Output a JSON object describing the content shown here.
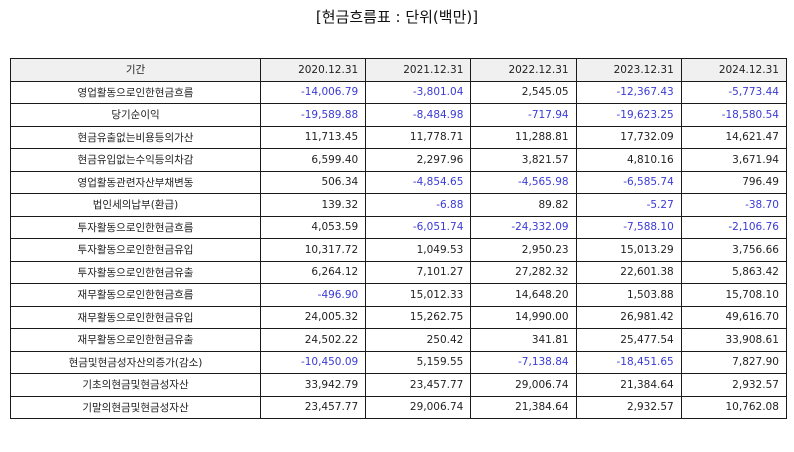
{
  "title": "[현금흐름표 : 단위(백만)]",
  "colors": {
    "negative": "#3a3ad6",
    "header_bg": "#f0f0f0",
    "border": "#1a1a1a"
  },
  "table": {
    "header": [
      "기간",
      "2020.12.31",
      "2021.12.31",
      "2022.12.31",
      "2023.12.31",
      "2024.12.31"
    ],
    "rows": [
      {
        "label": "영업활동으로인한현금흐름",
        "values": [
          "-14,006.79",
          "-3,801.04",
          "2,545.05",
          "-12,367.43",
          "-5,773.44"
        ]
      },
      {
        "label": "당기순이익",
        "values": [
          "-19,589.88",
          "-8,484.98",
          "-717.94",
          "-19,623.25",
          "-18,580.54"
        ]
      },
      {
        "label": "현금유출없는비용등의가산",
        "values": [
          "11,713.45",
          "11,778.71",
          "11,288.81",
          "17,732.09",
          "14,621.47"
        ]
      },
      {
        "label": "현금유입없는수익등의차감",
        "values": [
          "6,599.40",
          "2,297.96",
          "3,821.57",
          "4,810.16",
          "3,671.94"
        ]
      },
      {
        "label": "영업활동관련자산부채변동",
        "values": [
          "506.34",
          "-4,854.65",
          "-4,565.98",
          "-6,585.74",
          "796.49"
        ]
      },
      {
        "label": "법인세의납부(환급)",
        "values": [
          "139.32",
          "-6.88",
          "89.82",
          "-5.27",
          "-38.70"
        ]
      },
      {
        "label": "투자활동으로인한현금흐름",
        "values": [
          "4,053.59",
          "-6,051.74",
          "-24,332.09",
          "-7,588.10",
          "-2,106.76"
        ]
      },
      {
        "label": "투자활동으로인한현금유입",
        "values": [
          "10,317.72",
          "1,049.53",
          "2,950.23",
          "15,013.29",
          "3,756.66"
        ]
      },
      {
        "label": "투자활동으로인한현금유출",
        "values": [
          "6,264.12",
          "7,101.27",
          "27,282.32",
          "22,601.38",
          "5,863.42"
        ]
      },
      {
        "label": "재무활동으로인한현금흐름",
        "values": [
          "-496.90",
          "15,012.33",
          "14,648.20",
          "1,503.88",
          "15,708.10"
        ]
      },
      {
        "label": "재무활동으로인한현금유입",
        "values": [
          "24,005.32",
          "15,262.75",
          "14,990.00",
          "26,981.42",
          "49,616.70"
        ]
      },
      {
        "label": "재무활동으로인한현금유출",
        "values": [
          "24,502.22",
          "250.42",
          "341.81",
          "25,477.54",
          "33,908.61"
        ]
      },
      {
        "label": "현금및현금성자산의증가(감소)",
        "values": [
          "-10,450.09",
          "5,159.55",
          "-7,138.84",
          "-18,451.65",
          "7,827.90"
        ]
      },
      {
        "label": "기초의현금및현금성자산",
        "values": [
          "33,942.79",
          "23,457.77",
          "29,006.74",
          "21,384.64",
          "2,932.57"
        ]
      },
      {
        "label": "기말의현금및현금성자산",
        "values": [
          "23,457.77",
          "29,006.74",
          "21,384.64",
          "2,932.57",
          "10,762.08"
        ]
      }
    ]
  }
}
